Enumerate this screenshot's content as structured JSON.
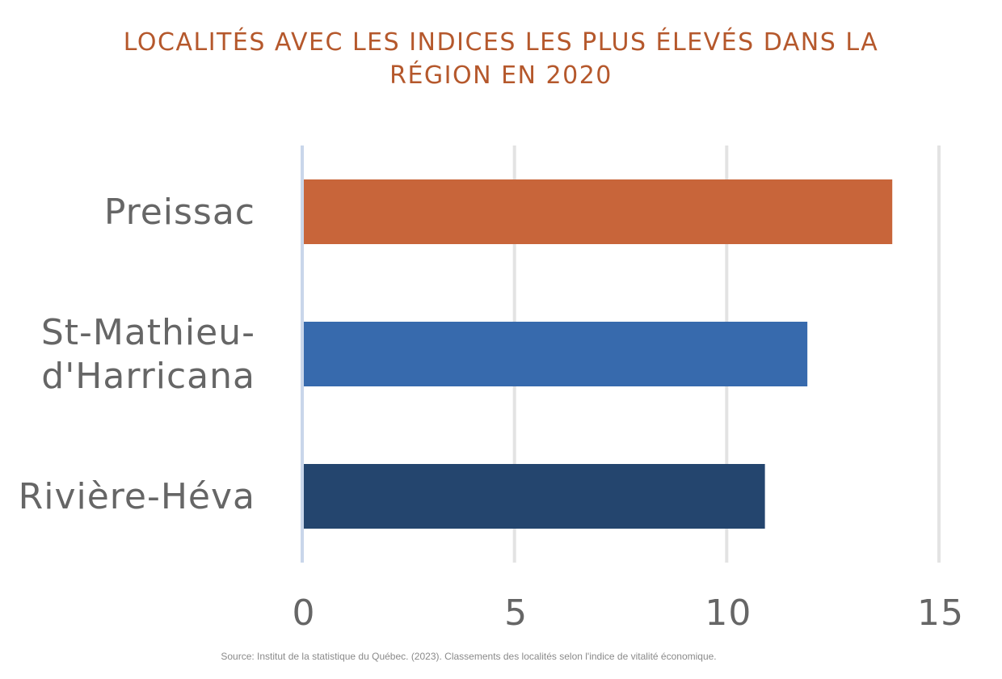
{
  "chart_data": {
    "type": "bar",
    "orientation": "horizontal",
    "title": "LOCALITÉS AVEC LES INDICES LES PLUS ÉLEVÉS DANS LA RÉGION EN 2020",
    "categories": [
      {
        "lines": [
          "Preissac"
        ],
        "name": "Preissac"
      },
      {
        "lines": [
          "St-Mathieu-",
          "d'Harricana"
        ],
        "name": "St-Mathieu-d'Harricana"
      },
      {
        "lines": [
          "Rivière-Héva"
        ],
        "name": "Rivière-Héva"
      }
    ],
    "values": [
      13.9,
      11.9,
      10.9
    ],
    "colors": [
      "#c8653a",
      "#376aad",
      "#24456e"
    ],
    "xlim": [
      0,
      15
    ],
    "xticks": [
      0,
      5,
      10,
      15
    ],
    "grid": true,
    "source": "Source: Institut de la statistique du Québec. (2023). Classements des localités selon l'indice de vitalité économique."
  }
}
